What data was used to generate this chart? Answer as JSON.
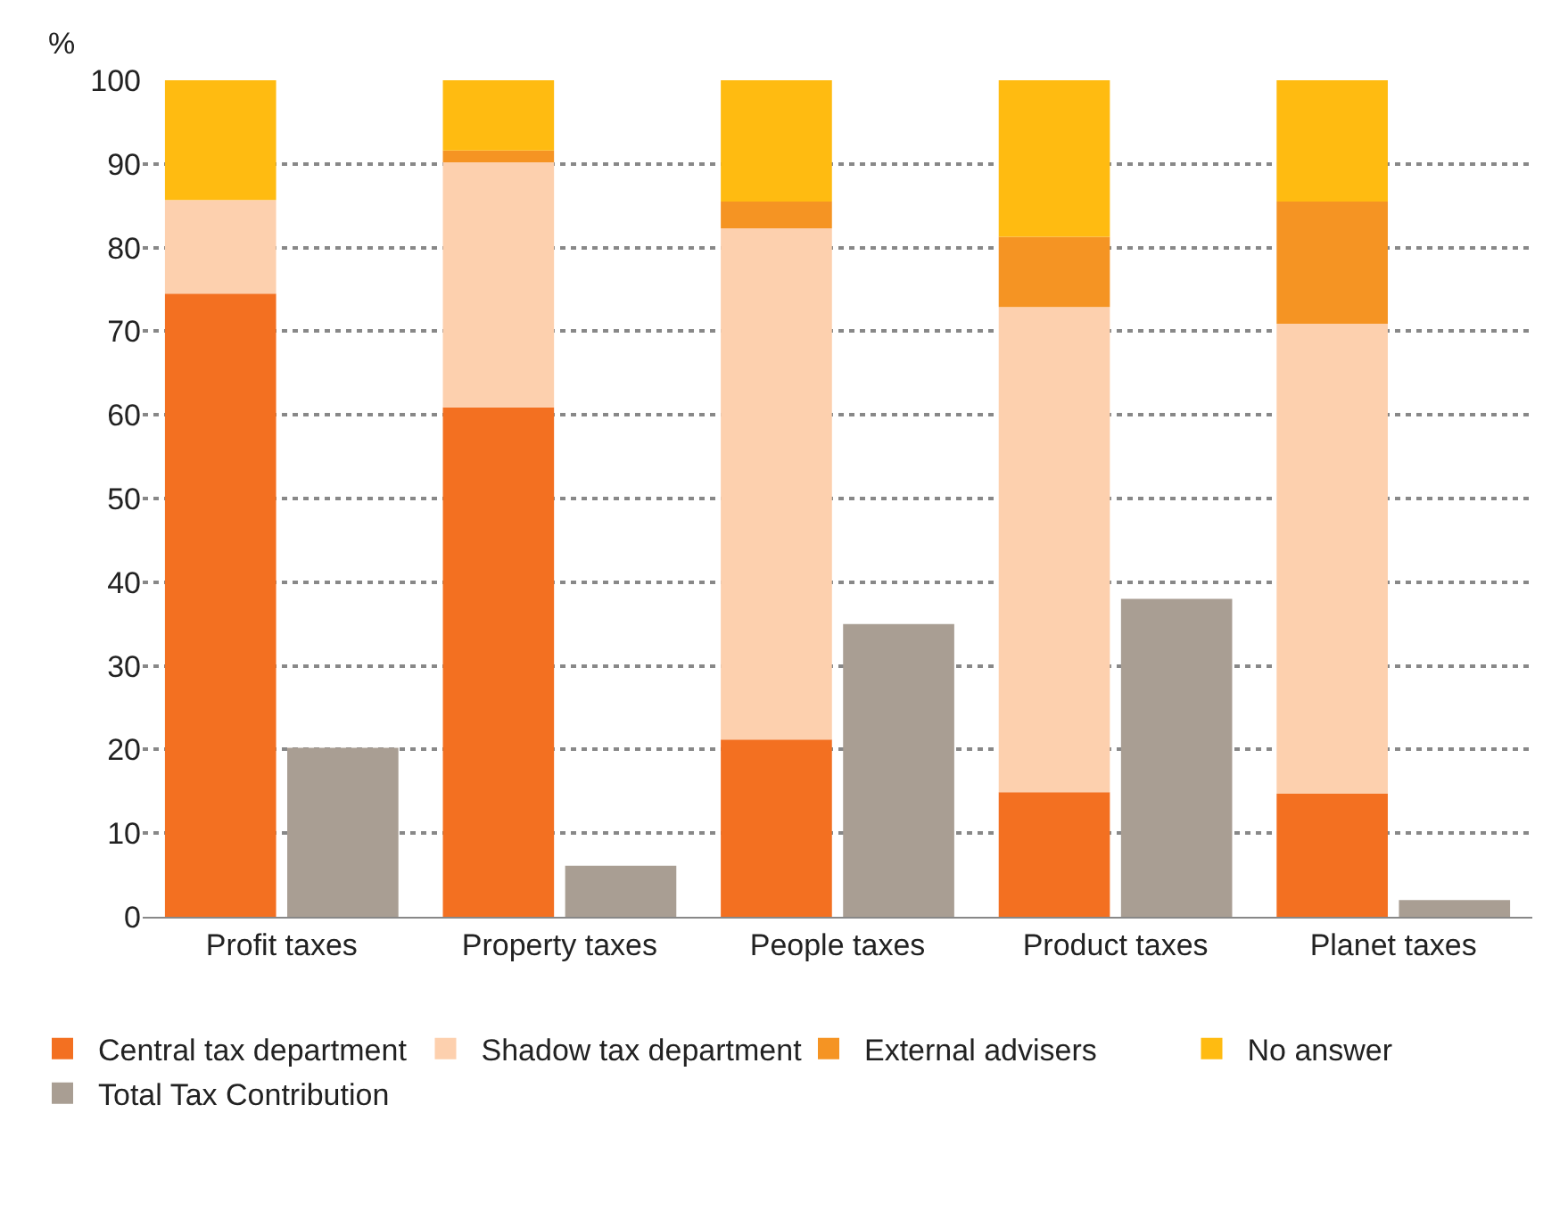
{
  "chart_data": {
    "type": "bar",
    "ylabel": "%",
    "categories": [
      "Profit taxes",
      "Property taxes",
      "People taxes",
      "Product taxes",
      "Planet taxes"
    ],
    "ylim": [
      0,
      100
    ],
    "yticks": [
      0,
      10,
      20,
      30,
      40,
      50,
      60,
      70,
      80,
      90,
      100
    ],
    "grid": "y",
    "legend": "bottom",
    "series": [
      {
        "name": "Central tax department",
        "color": "#f37021",
        "base": [
          0,
          0,
          0,
          0,
          0
        ],
        "values": [
          74.5,
          60.9,
          21.2,
          14.9,
          14.7
        ]
      },
      {
        "name": "Shadow tax department",
        "color": "#fdd0ae",
        "base": [
          74.5,
          60.9,
          21.2,
          14.9,
          14.7
        ],
        "values": [
          11.2,
          29.3,
          61.1,
          58.0,
          56.2
        ]
      },
      {
        "name": "External advisers",
        "color": "#f59423",
        "base": [
          null,
          90.2,
          82.3,
          72.9,
          70.9
        ],
        "values": [
          null,
          1.4,
          3.2,
          8.4,
          14.6
        ]
      },
      {
        "name": "No answer",
        "color": "#ffbb11",
        "base": [
          85.7,
          91.6,
          85.5,
          81.3,
          85.5
        ],
        "values": [
          14.3,
          8.4,
          14.5,
          18.7,
          14.5
        ]
      },
      {
        "name": "Total Tax Contribution",
        "color": "#a99e93",
        "values": [
          20.2,
          6.1,
          35,
          38,
          2
        ]
      }
    ]
  }
}
